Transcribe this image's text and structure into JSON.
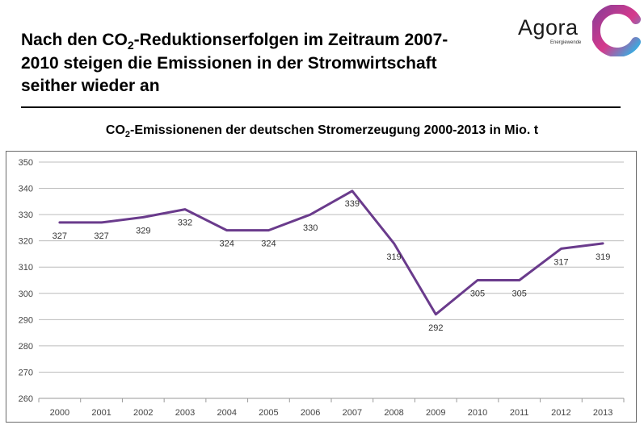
{
  "header": {
    "title_part1": "Nach den CO",
    "title_sub": "2",
    "title_part2": "-Reduktionserfolgen im Zeitraum 2007-2010 steigen die Emissionen in der Stromwirtschaft seither wieder an"
  },
  "logo": {
    "name": "Agora",
    "tagline": "Energiewende",
    "icon": "agora-logo-icon",
    "colors": [
      "#8e3c97",
      "#d63a8c",
      "#2fb3e6"
    ]
  },
  "chart_data": {
    "type": "line",
    "title_part1": "CO",
    "title_sub": "2",
    "title_part2": "-Emissionenen  der deutschen Stromerzeugung 2000-2013 in Mio. t",
    "xlabel": "",
    "ylabel": "",
    "categories": [
      "2000",
      "2001",
      "2002",
      "2003",
      "2004",
      "2005",
      "2006",
      "2007",
      "2008",
      "2009",
      "2010",
      "2011",
      "2012",
      "2013"
    ],
    "series": [
      {
        "values": [
          327,
          327,
          329,
          332,
          324,
          324,
          330,
          339,
          319,
          292,
          305,
          305,
          317,
          319
        ],
        "color": "#6a3b8c"
      }
    ],
    "label_position": [
      "below",
      "below",
      "below",
      "below",
      "below",
      "below",
      "below",
      "above",
      "below",
      "below",
      "below",
      "below",
      "below",
      "below"
    ],
    "ylim": [
      260,
      350
    ],
    "yticks": [
      260,
      270,
      280,
      290,
      300,
      310,
      320,
      330,
      340,
      350
    ],
    "grid": true,
    "legend": "none",
    "colors": {
      "line": "#6a3b8c",
      "grid": "#bcbcbc",
      "plot_bg": "#ffffff"
    }
  }
}
